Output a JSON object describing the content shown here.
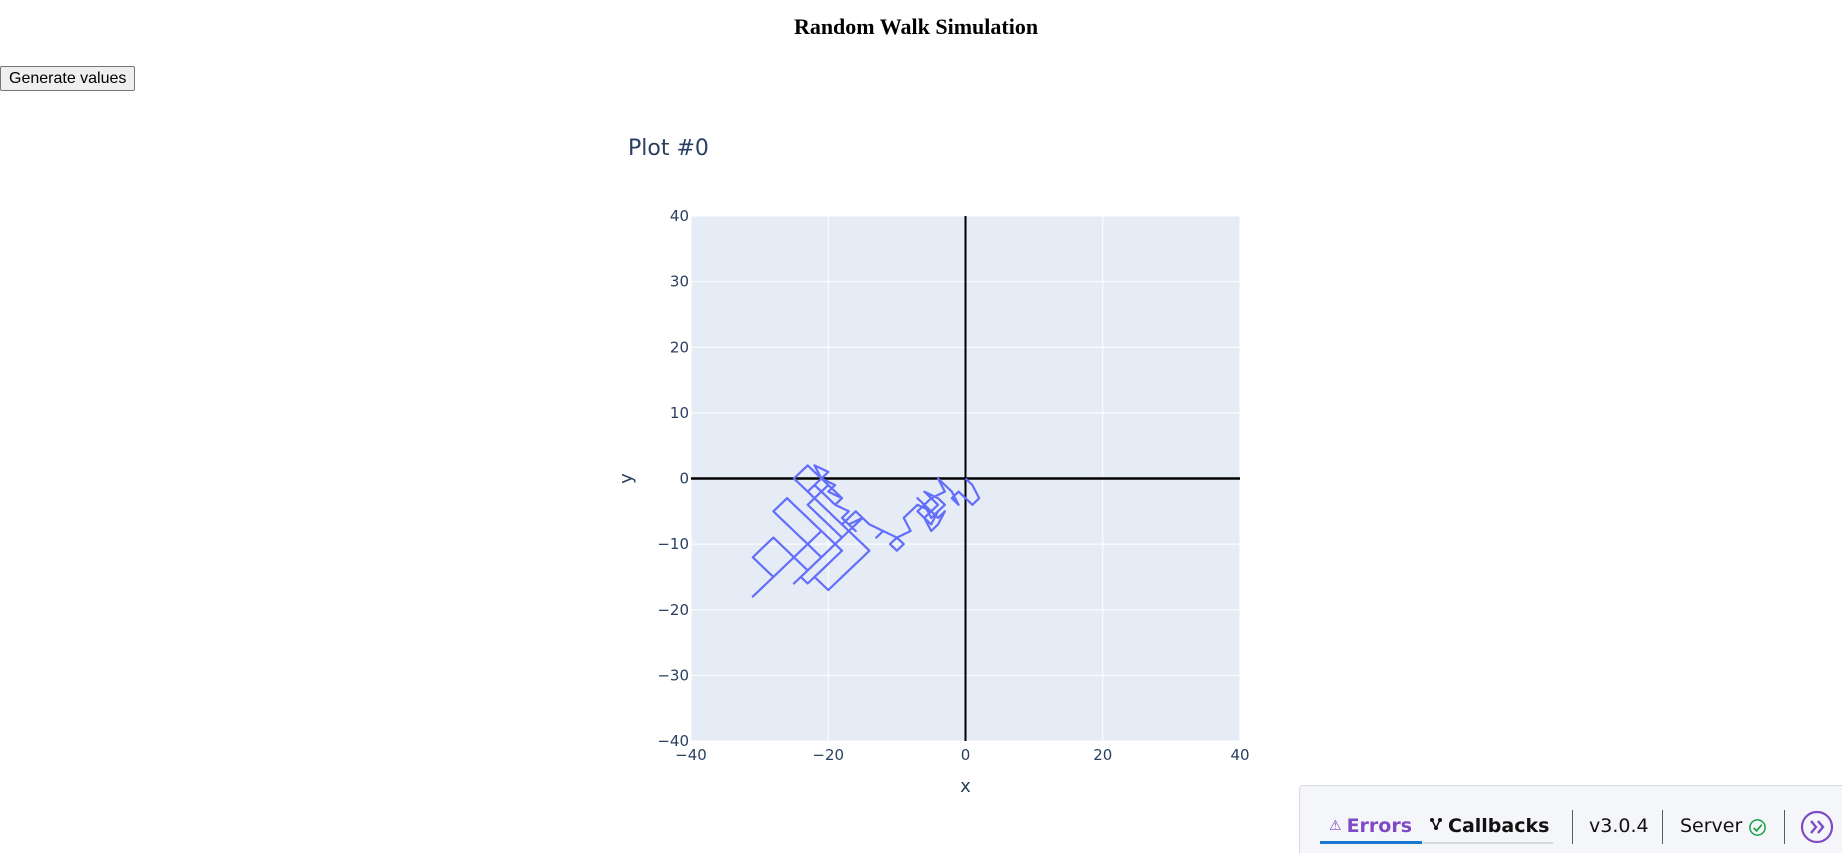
{
  "page": {
    "title": "Random Walk Simulation",
    "generate_button_label": "Generate values"
  },
  "chart_data": {
    "type": "line",
    "title": "Plot #0",
    "xlabel": "x",
    "ylabel": "y",
    "xlim": [
      -40,
      40
    ],
    "ylim": [
      -40,
      40
    ],
    "xticks": [
      -40,
      -20,
      0,
      20,
      40
    ],
    "yticks": [
      -40,
      -30,
      -20,
      -10,
      0,
      10,
      20,
      30,
      40
    ],
    "grid": true,
    "zero_lines": true,
    "colors": {
      "line": "#636efa",
      "plot_bg": "#e5ecf6",
      "grid": "#ffffff",
      "zeroline": "#000000",
      "text": "#2a3f5f"
    },
    "series": [
      {
        "x": [
          0,
          1,
          2,
          1,
          0,
          -1,
          -2,
          -1,
          -2,
          -3,
          -4,
          -3,
          -5,
          -4,
          -5,
          -6,
          -5,
          -4,
          -5,
          -6,
          -7,
          -6,
          -5,
          -6,
          -4,
          -3,
          -4,
          -5,
          -6,
          -7,
          -6,
          -5,
          -4,
          -3,
          -4,
          -5,
          -6,
          -5,
          -7,
          -8,
          -9,
          -8,
          -10,
          -9,
          -10,
          -11,
          -10,
          -12,
          -13,
          -12,
          -14,
          -15,
          -16,
          -15,
          -17,
          -16,
          -18,
          -17,
          -19,
          -18,
          -20,
          -19,
          -21,
          -20,
          -22,
          -21,
          -20,
          -19,
          -18,
          -19,
          -20,
          -21,
          -22,
          -21,
          -23,
          -22,
          -21,
          -20,
          -19,
          -18,
          -17,
          -18,
          -19,
          -20,
          -21,
          -22,
          -23,
          -24,
          -25,
          -24,
          -23,
          -22,
          -21,
          -20,
          -21,
          -22,
          -23,
          -22,
          -21,
          -20,
          -19,
          -18,
          -19,
          -20,
          -21,
          -22,
          -23,
          -24,
          -25,
          -26,
          -27,
          -28,
          -29,
          -30,
          -31,
          -30,
          -29,
          -28,
          -29,
          -30,
          -31,
          -30,
          -29,
          -28,
          -27,
          -26,
          -25,
          -24,
          -23,
          -22,
          -21,
          -20,
          -19,
          -18,
          -19,
          -20,
          -21,
          -22,
          -23,
          -24,
          -23,
          -22,
          -21,
          -22,
          -23,
          -24,
          -25,
          -26,
          -27,
          -28,
          -27,
          -26,
          -25,
          -24,
          -23,
          -22,
          -21,
          -20,
          -19,
          -20,
          -21,
          -22,
          -23,
          -24,
          -25,
          -24,
          -23,
          -22,
          -21,
          -20,
          -19,
          -18,
          -17,
          -16,
          -15,
          -16,
          -17,
          -18,
          -17,
          -16,
          -15,
          -14,
          -15,
          -16,
          -17,
          -18,
          -19,
          -20,
          -21,
          -22
        ],
        "y": [
          0,
          -1,
          -3,
          -4,
          -3,
          -2,
          -3,
          -4,
          -2,
          -1,
          0,
          -2,
          -3,
          -4,
          -5,
          -4,
          -6,
          -5,
          -7,
          -6,
          -5,
          -4,
          -3,
          -2,
          -3,
          -4,
          -5,
          -6,
          -4,
          -3,
          -4,
          -5,
          -6,
          -5,
          -7,
          -8,
          -6,
          -5,
          -4,
          -5,
          -6,
          -8,
          -9,
          -10,
          -11,
          -10,
          -9,
          -8,
          -9,
          -8,
          -7,
          -6,
          -5,
          -6,
          -7,
          -8,
          -6,
          -5,
          -4,
          -3,
          -2,
          -1,
          0,
          1,
          2,
          0,
          -1,
          -2,
          -3,
          -4,
          -3,
          -2,
          -1,
          0,
          -2,
          -3,
          -4,
          -5,
          -6,
          -7,
          -8,
          -7,
          -6,
          -5,
          -4,
          -3,
          -2,
          -1,
          0,
          1,
          2,
          1,
          0,
          -1,
          -2,
          -3,
          -4,
          -5,
          -6,
          -7,
          -8,
          -9,
          -10,
          -11,
          -12,
          -13,
          -14,
          -13,
          -12,
          -11,
          -10,
          -9,
          -10,
          -11,
          -12,
          -13,
          -14,
          -15,
          -16,
          -17,
          -18,
          -17,
          -16,
          -15,
          -14,
          -13,
          -12,
          -11,
          -10,
          -9,
          -8,
          -9,
          -10,
          -11,
          -12,
          -13,
          -14,
          -15,
          -16,
          -15,
          -14,
          -13,
          -12,
          -11,
          -10,
          -9,
          -8,
          -7,
          -6,
          -5,
          -4,
          -3,
          -4,
          -5,
          -6,
          -7,
          -8,
          -9,
          -10,
          -11,
          -12,
          -13,
          -14,
          -15,
          -16,
          -15,
          -14,
          -13,
          -12,
          -11,
          -10,
          -9,
          -8,
          -7,
          -6,
          -5,
          -6,
          -7,
          -8,
          -9,
          -10,
          -11,
          -12,
          -13,
          -14,
          -15,
          -16,
          -17,
          -16,
          -15
        ]
      }
    ]
  },
  "debug_menu": {
    "errors_label": "Errors",
    "errors_icon": "warning-icon",
    "callbacks_label": "Callbacks",
    "callbacks_icon": "callback-graph-icon",
    "version": "v3.0.4",
    "server_label": "Server",
    "server_status_icon": "check-circle-icon",
    "server_status_color": "#17a24a",
    "accent_color": "#7f4bc4",
    "toggle_icon": "chevrons-right-icon"
  }
}
